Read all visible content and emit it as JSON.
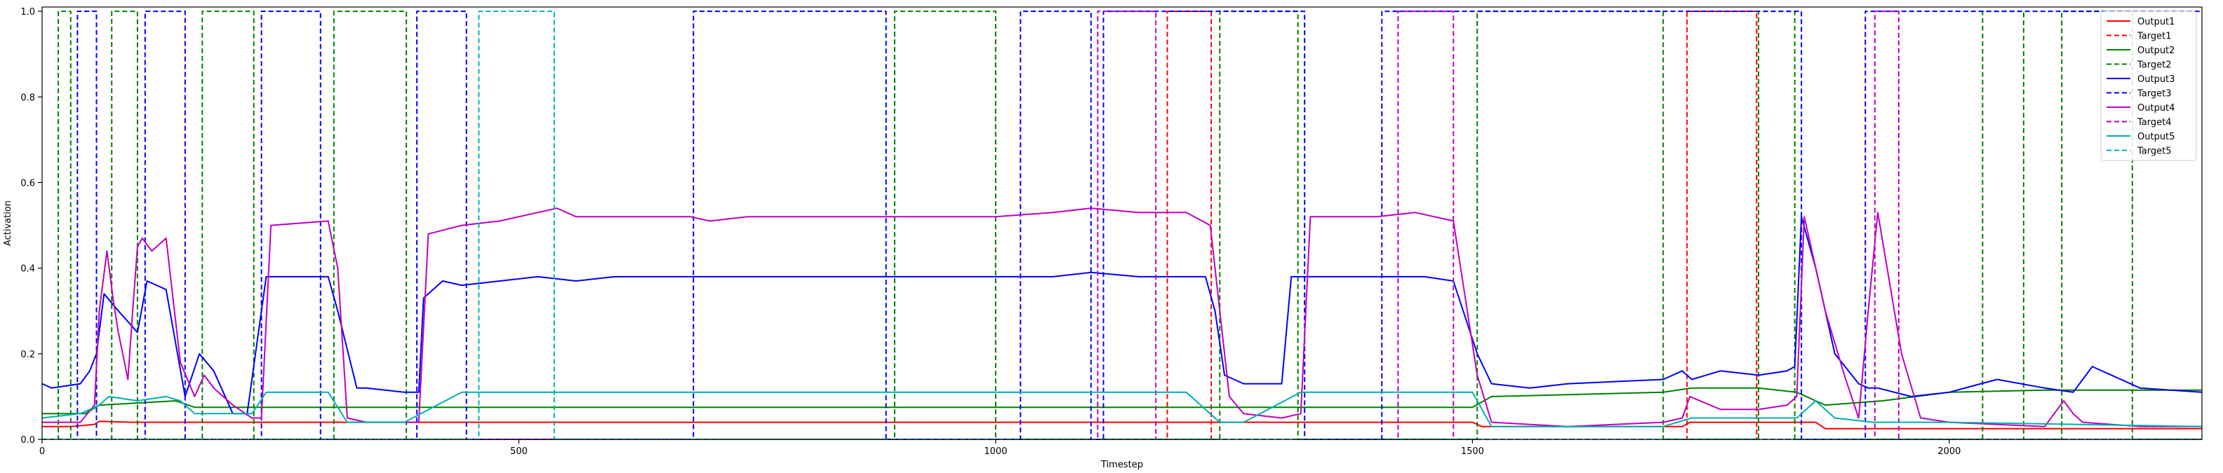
{
  "chart_data": {
    "type": "line",
    "xlabel": "Timestep",
    "ylabel": "Activation",
    "xlim": [
      0,
      2265
    ],
    "ylim": [
      0,
      1.01
    ],
    "xticks": [
      0,
      500,
      1000,
      1500,
      2000
    ],
    "yticks": [
      0.0,
      0.2,
      0.4,
      0.6,
      0.8,
      1.0
    ],
    "legend": "top-right",
    "series": [
      {
        "name": "Output1",
        "color": "#ff0000",
        "dash": "solid",
        "x": [
          0,
          30,
          55,
          60,
          95,
          230,
          310,
          1500,
          1510,
          1720,
          1728,
          1860,
          1870,
          2265
        ],
        "y": [
          0.03,
          0.03,
          0.035,
          0.042,
          0.04,
          0.04,
          0.04,
          0.04,
          0.03,
          0.03,
          0.04,
          0.04,
          0.025,
          0.025
        ]
      },
      {
        "name": "Target1",
        "color": "#ff0000",
        "dash": "dashed",
        "x": [
          0,
          1180,
          1180,
          1226,
          1226,
          1725,
          1725,
          1798,
          1798,
          2265
        ],
        "y": [
          0,
          0,
          1,
          1,
          0,
          0,
          1,
          1,
          0,
          0
        ]
      },
      {
        "name": "Output2",
        "color": "#008000",
        "dash": "solid",
        "x": [
          0,
          45,
          60,
          100,
          140,
          160,
          230,
          300,
          1500,
          1520,
          1700,
          1730,
          1800,
          1840,
          1870,
          1930,
          2000,
          2100,
          2265
        ],
        "y": [
          0.06,
          0.06,
          0.08,
          0.085,
          0.09,
          0.075,
          0.075,
          0.075,
          0.075,
          0.1,
          0.11,
          0.12,
          0.12,
          0.11,
          0.08,
          0.09,
          0.11,
          0.115,
          0.115
        ]
      },
      {
        "name": "Target2",
        "color": "#008000",
        "dash": "dashed",
        "x": [
          0,
          17,
          17,
          30,
          30,
          73,
          73,
          100,
          100,
          168,
          168,
          222,
          222,
          306,
          306,
          382,
          382,
          894,
          894,
          1000,
          1000,
          1235,
          1235,
          1317,
          1317,
          1505,
          1505,
          1700,
          1700,
          1800,
          1800,
          1838,
          1838,
          2035,
          2035,
          2078,
          2078,
          2118,
          2118,
          2192,
          2192,
          2265
        ],
        "y": [
          0,
          0,
          1,
          1,
          0,
          0,
          1,
          1,
          0,
          0,
          1,
          1,
          0,
          0,
          1,
          1,
          0,
          0,
          1,
          1,
          0,
          0,
          1,
          1,
          0,
          0,
          1,
          1,
          0,
          0,
          1,
          1,
          0,
          0,
          1,
          1,
          0,
          0,
          1,
          1,
          0,
          0
        ]
      },
      {
        "name": "Output3",
        "color": "#0000ff",
        "dash": "solid",
        "x": [
          0,
          10,
          40,
          50,
          57,
          65,
          80,
          100,
          110,
          130,
          150,
          165,
          180,
          200,
          215,
          235,
          300,
          310,
          330,
          340,
          380,
          395,
          400,
          420,
          440,
          480,
          520,
          560,
          600,
          680,
          700,
          760,
          820,
          880,
          940,
          1000,
          1060,
          1100,
          1150,
          1220,
          1230,
          1240,
          1260,
          1300,
          1310,
          1330,
          1400,
          1450,
          1480,
          1505,
          1520,
          1560,
          1600,
          1700,
          1720,
          1730,
          1760,
          1800,
          1830,
          1838,
          1845,
          1860,
          1880,
          1905,
          1915,
          1925,
          1960,
          2000,
          2050,
          2100,
          2130,
          2150,
          2200,
          2265
        ],
        "y": [
          0.13,
          0.12,
          0.13,
          0.16,
          0.2,
          0.34,
          0.3,
          0.25,
          0.37,
          0.35,
          0.1,
          0.2,
          0.16,
          0.06,
          0.06,
          0.38,
          0.38,
          0.3,
          0.12,
          0.12,
          0.11,
          0.11,
          0.33,
          0.37,
          0.36,
          0.37,
          0.38,
          0.37,
          0.38,
          0.38,
          0.38,
          0.38,
          0.38,
          0.38,
          0.38,
          0.38,
          0.38,
          0.39,
          0.38,
          0.38,
          0.3,
          0.15,
          0.13,
          0.13,
          0.38,
          0.38,
          0.38,
          0.38,
          0.37,
          0.2,
          0.13,
          0.12,
          0.13,
          0.14,
          0.16,
          0.14,
          0.16,
          0.15,
          0.16,
          0.17,
          0.52,
          0.4,
          0.2,
          0.13,
          0.12,
          0.12,
          0.1,
          0.11,
          0.14,
          0.12,
          0.11,
          0.17,
          0.12,
          0.11
        ]
      },
      {
        "name": "Target3",
        "color": "#0000ff",
        "dash": "dashed",
        "x": [
          0,
          37,
          37,
          57,
          57,
          108,
          108,
          150,
          150,
          230,
          230,
          292,
          292,
          393,
          393,
          445,
          445,
          683,
          683,
          885,
          885,
          1026,
          1026,
          1100,
          1100,
          1113,
          1113,
          1324,
          1324,
          1405,
          1405,
          1845,
          1845,
          1912,
          1912,
          2265
        ],
        "y": [
          0,
          0,
          1,
          1,
          0,
          0,
          1,
          1,
          0,
          0,
          1,
          1,
          0,
          0,
          1,
          1,
          0,
          0,
          1,
          1,
          0,
          0,
          1,
          1,
          0,
          0,
          1,
          1,
          0,
          0,
          1,
          1,
          0,
          0,
          1,
          1
        ]
      },
      {
        "name": "Output4",
        "color": "#c000c0",
        "dash": "solid",
        "x": [
          0,
          40,
          55,
          60,
          68,
          75,
          80,
          90,
          95,
          100,
          105,
          115,
          130,
          145,
          160,
          170,
          180,
          200,
          220,
          230,
          240,
          300,
          310,
          320,
          340,
          380,
          395,
          405,
          440,
          480,
          540,
          560,
          620,
          680,
          700,
          740,
          800,
          860,
          900,
          960,
          1000,
          1060,
          1100,
          1150,
          1200,
          1225,
          1235,
          1245,
          1260,
          1300,
          1320,
          1330,
          1400,
          1440,
          1480,
          1505,
          1520,
          1600,
          1700,
          1720,
          1728,
          1760,
          1800,
          1830,
          1840,
          1848,
          1870,
          1890,
          1905,
          1915,
          1925,
          1950,
          1970,
          2000,
          2100,
          2120,
          2130,
          2140,
          2200,
          2265
        ],
        "y": [
          0.04,
          0.04,
          0.08,
          0.3,
          0.44,
          0.32,
          0.25,
          0.14,
          0.3,
          0.45,
          0.47,
          0.44,
          0.47,
          0.18,
          0.1,
          0.15,
          0.12,
          0.08,
          0.05,
          0.05,
          0.5,
          0.51,
          0.4,
          0.05,
          0.04,
          0.04,
          0.04,
          0.48,
          0.5,
          0.51,
          0.54,
          0.52,
          0.52,
          0.52,
          0.51,
          0.52,
          0.52,
          0.52,
          0.52,
          0.52,
          0.52,
          0.53,
          0.54,
          0.53,
          0.53,
          0.5,
          0.3,
          0.1,
          0.06,
          0.05,
          0.06,
          0.52,
          0.52,
          0.53,
          0.51,
          0.15,
          0.04,
          0.03,
          0.04,
          0.05,
          0.1,
          0.07,
          0.07,
          0.08,
          0.1,
          0.52,
          0.3,
          0.15,
          0.05,
          0.3,
          0.53,
          0.2,
          0.05,
          0.04,
          0.03,
          0.09,
          0.06,
          0.04,
          0.03,
          0.03
        ]
      },
      {
        "name": "Target4",
        "color": "#c000c0",
        "dash": "dashed",
        "x": [
          0,
          1107,
          1107,
          1168,
          1168,
          1422,
          1422,
          1480,
          1480,
          1922,
          1922,
          1947,
          1947,
          2265
        ],
        "y": [
          0,
          0,
          1,
          1,
          0,
          0,
          1,
          1,
          0,
          0,
          1,
          1,
          0,
          0
        ]
      },
      {
        "name": "Output5",
        "color": "#00b0b0",
        "dash": "solid",
        "x": [
          0,
          40,
          60,
          70,
          100,
          130,
          145,
          160,
          220,
          235,
          300,
          320,
          380,
          440,
          500,
          700,
          1000,
          1200,
          1235,
          1260,
          1320,
          1400,
          1500,
          1520,
          1700,
          1730,
          1800,
          1840,
          1860,
          1880,
          1920,
          2000,
          2265
        ],
        "y": [
          0.05,
          0.06,
          0.08,
          0.1,
          0.09,
          0.1,
          0.09,
          0.06,
          0.06,
          0.11,
          0.11,
          0.04,
          0.04,
          0.11,
          0.11,
          0.11,
          0.11,
          0.11,
          0.04,
          0.04,
          0.11,
          0.11,
          0.11,
          0.03,
          0.03,
          0.05,
          0.05,
          0.05,
          0.09,
          0.05,
          0.04,
          0.04,
          0.03
        ]
      },
      {
        "name": "Target5",
        "color": "#00b0b0",
        "dash": "dashed",
        "x": [
          0,
          458,
          458,
          537,
          537,
          2265
        ],
        "y": [
          0,
          0,
          1,
          1,
          0,
          0
        ]
      }
    ]
  }
}
